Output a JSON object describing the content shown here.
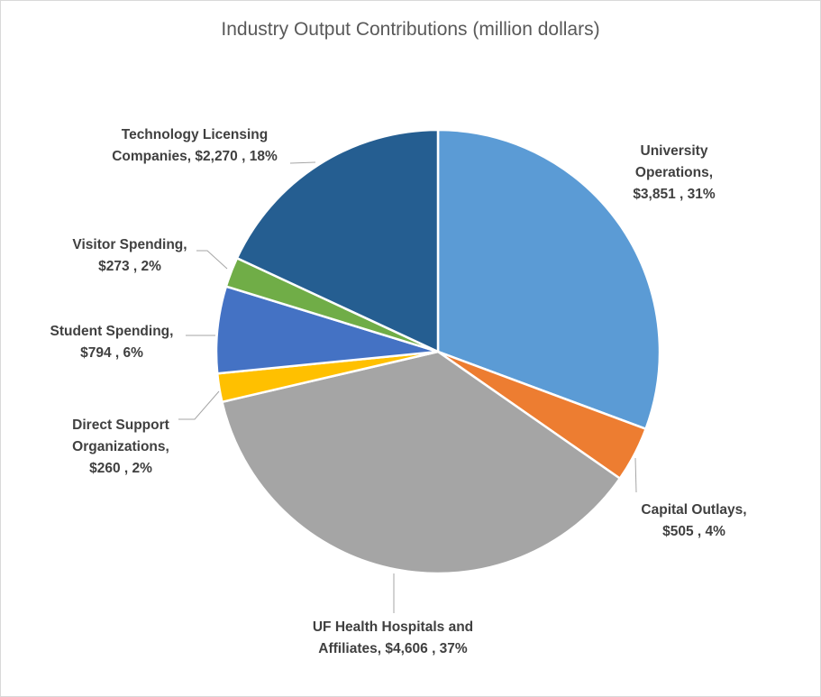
{
  "chart_data": {
    "type": "pie",
    "title": "Industry Output Contributions (million dollars)",
    "slices": [
      {
        "name": "University Operations",
        "value": 3851,
        "percent": 31,
        "color": "#5b9bd5",
        "label_lines": [
          "University",
          "Operations,",
          "$3,851 , 31%"
        ]
      },
      {
        "name": "Capital Outlays",
        "value": 505,
        "percent": 4,
        "color": "#ed7d31",
        "label_lines": [
          "Capital Outlays,",
          "$505 , 4%"
        ]
      },
      {
        "name": "UF Health Hospitals and Affiliates",
        "value": 4606,
        "percent": 37,
        "color": "#a5a5a5",
        "label_lines": [
          "UF Health Hospitals and",
          "Affiliates, $4,606 , 37%"
        ]
      },
      {
        "name": "Direct Support Organizations",
        "value": 260,
        "percent": 2,
        "color": "#ffc000",
        "label_lines": [
          "Direct Support",
          "Organizations,",
          "$260 , 2%"
        ]
      },
      {
        "name": "Student Spending",
        "value": 794,
        "percent": 6,
        "color": "#4472c4",
        "label_lines": [
          "Student Spending,",
          "$794 , 6%"
        ]
      },
      {
        "name": "Visitor Spending",
        "value": 273,
        "percent": 2,
        "color": "#70ad47",
        "label_lines": [
          "Visitor Spending,",
          "$273 , 2%"
        ]
      },
      {
        "name": "Technology Licensing Companies",
        "value": 2270,
        "percent": 18,
        "color": "#255e91",
        "label_lines": [
          "Technology Licensing",
          "Companies, $2,270 , 18%"
        ]
      }
    ]
  }
}
